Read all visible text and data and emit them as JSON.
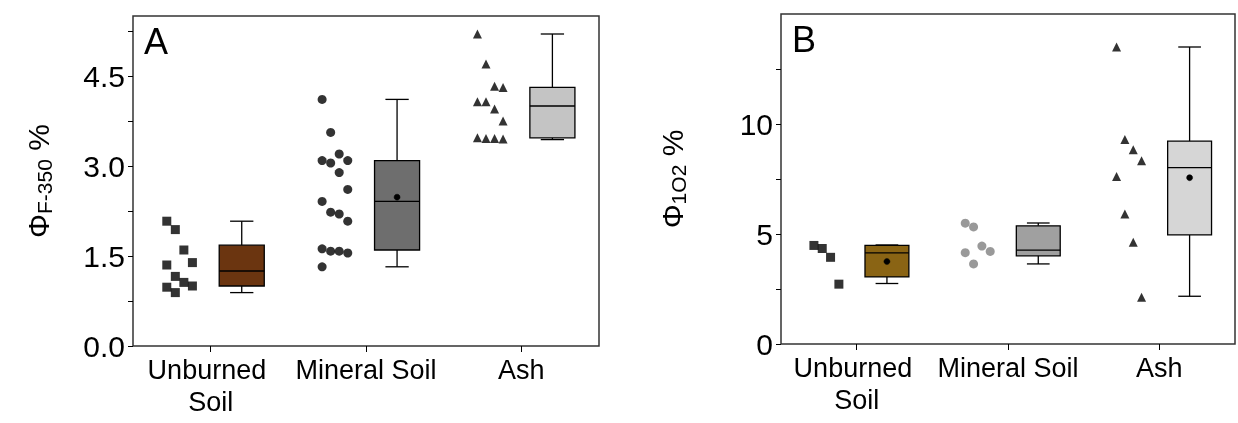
{
  "chart_data": [
    {
      "type": "box",
      "title": "A",
      "ylabel": "Φ$_{F-350}$ %",
      "categories": [
        "Unburned Soil",
        "Mineral Soil",
        "Ash"
      ],
      "ylim": [
        0,
        5.5
      ],
      "yticks": [
        {
          "value": 0,
          "label": "0.0"
        },
        {
          "value": 0.75,
          "label": null
        },
        {
          "value": 1.5,
          "label": "1.5"
        },
        {
          "value": 2.25,
          "label": null
        },
        {
          "value": 3,
          "label": "3.0"
        },
        {
          "value": 3.75,
          "label": null
        },
        {
          "value": 4.5,
          "label": "4.5"
        },
        {
          "value": 5.25,
          "label": null
        }
      ],
      "grid": false,
      "series": [
        {
          "colors": [
            "#6b3510",
            "#6e6e6e",
            "#c4c4c4"
          ],
          "boxes": [
            {
              "low": 0.89,
              "q1": 1.0,
              "median": 1.25,
              "q3": 1.68,
              "high": 2.08
            },
            {
              "low": 1.32,
              "q1": 1.6,
              "median": 2.41,
              "q3": 3.09,
              "high": 4.11,
              "mean": 2.48
            },
            {
              "low": 3.44,
              "q1": 3.47,
              "median": 4.0,
              "q3": 4.31,
              "high": 5.2
            }
          ]
        },
        {
          "type": "scatter",
          "marker": "square",
          "color": "#000000",
          "x": [
            "Unburned Soil",
            "Unburned Soil",
            "Unburned Soil",
            "Unburned Soil",
            "Unburned Soil",
            "Unburned Soil",
            "Unburned Soil",
            "Unburned Soil",
            "Unburned Soil",
            "Unburned Soil"
          ],
          "values": [
            2.08,
            1.94,
            1.6,
            1.39,
            1.35,
            1.16,
            1.06,
            1.0,
            0.98,
            0.89
          ]
        },
        {
          "type": "scatter",
          "marker": "circle",
          "color": "#000000",
          "x": [
            "Mineral Soil",
            "Mineral Soil",
            "Mineral Soil",
            "Mineral Soil",
            "Mineral Soil",
            "Mineral Soil",
            "Mineral Soil",
            "Mineral Soil",
            "Mineral Soil",
            "Mineral Soil",
            "Mineral Soil",
            "Mineral Soil",
            "Mineral Soil",
            "Mineral Soil",
            "Mineral Soil",
            "Mineral Soil",
            "Mineral Soil"
          ],
          "values": [
            4.11,
            3.56,
            3.2,
            3.09,
            3.09,
            3.05,
            2.89,
            2.61,
            2.41,
            2.23,
            2.2,
            2.08,
            1.62,
            1.58,
            1.58,
            1.55,
            1.32
          ]
        },
        {
          "type": "scatter",
          "marker": "triangle",
          "color": "#000000",
          "x": [
            "Ash",
            "Ash",
            "Ash",
            "Ash",
            "Ash",
            "Ash",
            "Ash",
            "Ash",
            "Ash",
            "Ash",
            "Ash",
            "Ash"
          ],
          "values": [
            5.2,
            4.7,
            4.33,
            4.31,
            4.07,
            4.07,
            3.95,
            3.75,
            3.47,
            3.46,
            3.46,
            3.45
          ]
        }
      ]
    },
    {
      "type": "box",
      "title": "B",
      "ylabel": "Φ$_{1O2}$ %",
      "categories": [
        "Unburned Soil",
        "Mineral Soil",
        "Ash"
      ],
      "ylim": [
        0,
        15
      ],
      "yticks": [
        0,
        {
          "value": 2.5,
          "label": null
        },
        5,
        {
          "value": 7.5,
          "label": null
        },
        10,
        {
          "value": 12.5,
          "label": null
        }
      ],
      "grid": false,
      "series": [
        {
          "colors": [
            "#8a6414",
            "#a0a0a0",
            "#d6d6d6"
          ],
          "boxes": [
            {
              "low": 2.75,
              "q1": 3.05,
              "median": 4.14,
              "q3": 4.48,
              "high": 4.5,
              "mean": 3.75
            },
            {
              "low": 3.64,
              "q1": 4.01,
              "median": 4.27,
              "q3": 5.37,
              "high": 5.5
            },
            {
              "low": 2.17,
              "q1": 4.96,
              "median": 8.02,
              "q3": 9.22,
              "high": 13.5,
              "mean": 7.56
            }
          ]
        },
        {
          "type": "scatter",
          "marker": "square",
          "color": "#000000",
          "x": [
            "Unburned Soil",
            "Unburned Soil",
            "Unburned Soil",
            "Unburned Soil"
          ],
          "values": [
            4.48,
            4.34,
            3.94,
            2.72
          ]
        },
        {
          "type": "scatter",
          "marker": "circle",
          "color": "#808080",
          "x": [
            "Mineral Soil",
            "Mineral Soil",
            "Mineral Soil",
            "Mineral Soil",
            "Mineral Soil",
            "Mineral Soil"
          ],
          "values": [
            5.49,
            5.32,
            4.45,
            4.21,
            4.15,
            3.64
          ]
        },
        {
          "type": "scatter",
          "marker": "triangle",
          "color": "#000000",
          "x": [
            "Ash",
            "Ash",
            "Ash",
            "Ash",
            "Ash",
            "Ash",
            "Ash",
            "Ash"
          ],
          "values": [
            13.5,
            9.3,
            8.83,
            8.33,
            7.61,
            5.91,
            4.62,
            2.13
          ]
        }
      ]
    }
  ]
}
